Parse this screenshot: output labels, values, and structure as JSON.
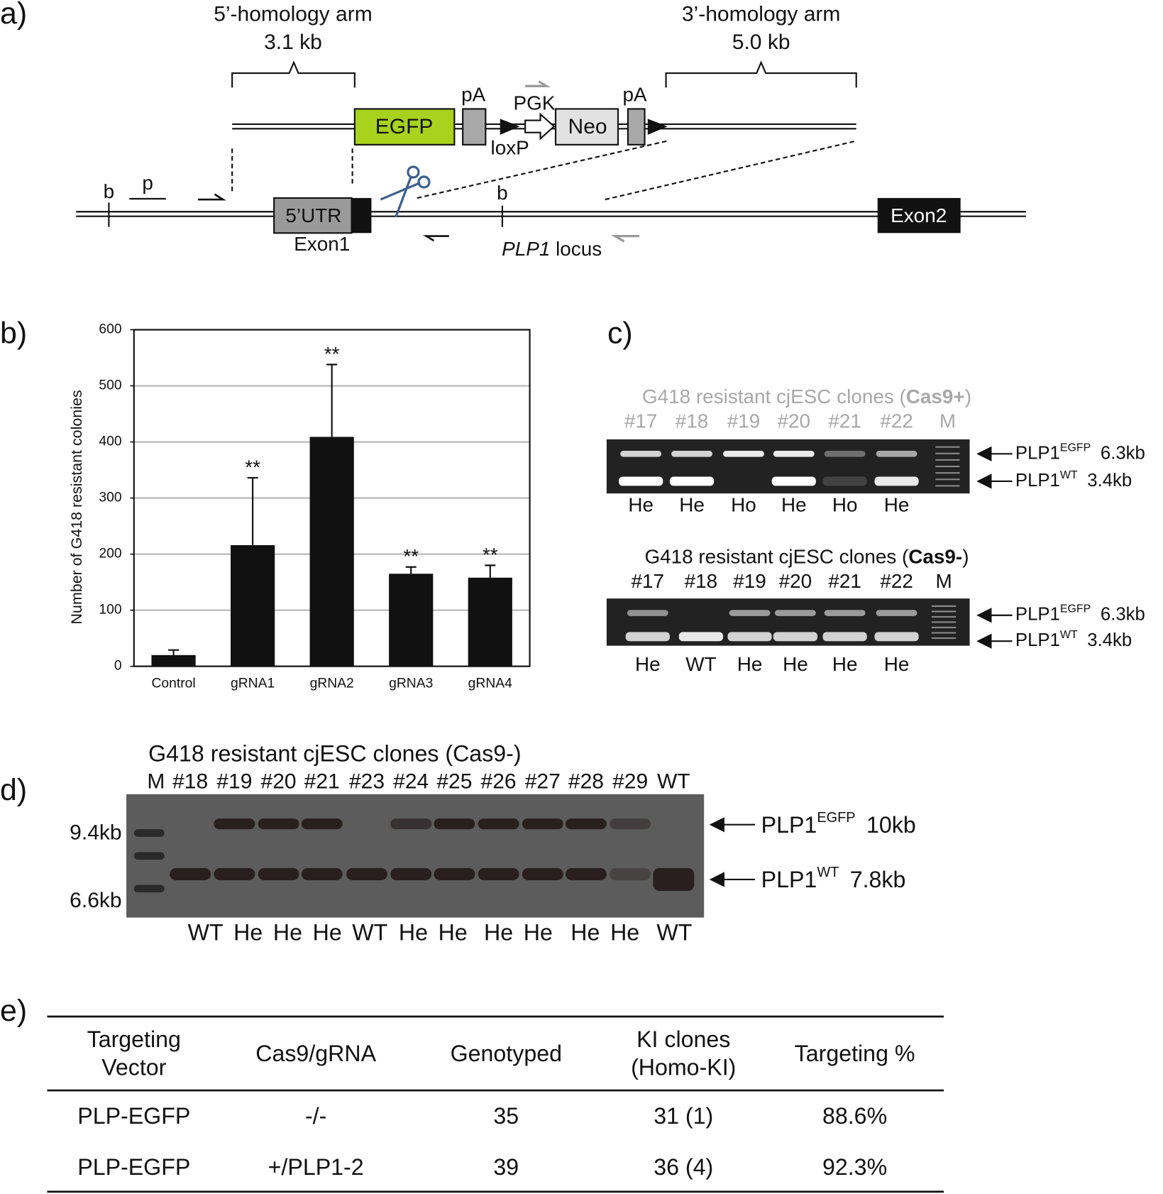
{
  "panel_labels": [
    "a)",
    "b)",
    "c)",
    "d)",
    "e)"
  ],
  "panel_a": {
    "arm5": {
      "label": "5’-homology arm",
      "size": "3.1 kb"
    },
    "arm3": {
      "label": "3’-homology arm",
      "size": "5.0 kb"
    },
    "vector": {
      "egfp": "EGFP",
      "pa1": "pA",
      "pgk": "PGK",
      "neo": "Neo",
      "pa2": "pA",
      "loxp": "loxP"
    },
    "locus": {
      "b1": "b",
      "p": "p",
      "utr": "5’UTR",
      "exon1": "Exon1",
      "b2": "b",
      "gene": "PLP1",
      "name": "locus",
      "exon2": "Exon2"
    }
  },
  "chart_data": {
    "type": "bar",
    "y_label": "Number of G418 resistant colonies",
    "categories": [
      "Control",
      "gRNA1",
      "gRNA2",
      "gRNA3",
      "gRNA4"
    ],
    "values": [
      20,
      216,
      409,
      165,
      158
    ],
    "errors": [
      9,
      120,
      129,
      12,
      22
    ],
    "significance": [
      null,
      "**",
      "**",
      "**",
      "**"
    ],
    "color": "#111111",
    "ylim": [
      0,
      600
    ],
    "yticks": [
      0,
      100,
      200,
      300,
      400,
      500,
      600
    ],
    "grid": true
  },
  "panel_c": {
    "gels": [
      {
        "title": {
          "prefix": "G418 resistant cjESC clones (",
          "strain": "Cas9+",
          "suffix": ")"
        },
        "lanes": [
          "#17",
          "#18",
          "#19",
          "#20",
          "#21",
          "#22",
          "M"
        ],
        "genotypes": [
          "He",
          "He",
          "Ho",
          "He",
          "Ho",
          "He"
        ]
      },
      {
        "title": {
          "prefix": "G418 resistant cjESC clones (",
          "strain": "Cas9-",
          "suffix": ")"
        },
        "lanes": [
          "#17",
          "#18",
          "#19",
          "#20",
          "#21",
          "#22",
          "M"
        ],
        "genotypes": [
          "He",
          "WT",
          "He",
          "He",
          "He",
          "He"
        ]
      }
    ],
    "bands": [
      {
        "gene": "PLP1",
        "allele": "EGFP",
        "size": "6.3kb"
      },
      {
        "gene": "PLP1",
        "allele": "WT",
        "size": "3.4kb"
      }
    ]
  },
  "panel_d": {
    "title": "G418 resistant cjESC clones (Cas9-)",
    "lanes": [
      "M",
      "#18",
      "#19",
      "#20",
      "#21",
      "#23",
      "#24",
      "#25",
      "#26",
      "#27",
      "#28",
      "#29",
      "WT"
    ],
    "markers": [
      "9.4kb",
      "6.6kb"
    ],
    "genotypes": [
      "WT",
      "He",
      "He",
      "He",
      "WT",
      "He",
      "He",
      "He",
      "He",
      "He",
      "He",
      "WT"
    ],
    "bands": [
      {
        "gene": "PLP1",
        "allele": "EGFP",
        "size": "10kb"
      },
      {
        "gene": "PLP1",
        "allele": "WT",
        "size": "7.8kb"
      }
    ]
  },
  "table": {
    "header": [
      [
        "Targeting",
        "Vector"
      ],
      [
        "Cas9/gRNA"
      ],
      [
        "Genotyped"
      ],
      [
        "KI clones",
        "(Homo-KI)"
      ],
      [
        "Targeting %"
      ]
    ],
    "rows": [
      [
        "PLP-EGFP",
        "-/-",
        "35",
        "31 (1)",
        "88.6%"
      ],
      [
        "PLP-EGFP",
        "+/PLP1-2",
        "39",
        "36 (4)",
        "92.3%"
      ]
    ]
  }
}
